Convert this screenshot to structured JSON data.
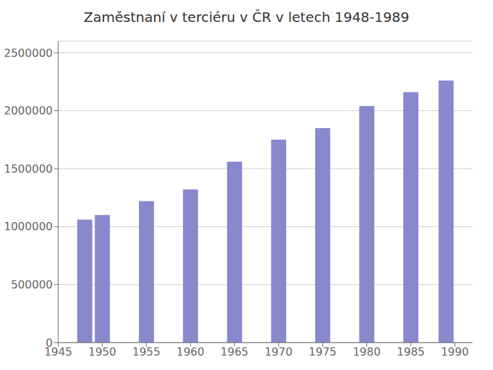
{
  "chart_data": {
    "type": "bar",
    "title": "Zaměstnaní v terciéru v ČR v letech 1948-1989",
    "x": [
      1948,
      1950,
      1955,
      1960,
      1965,
      1970,
      1975,
      1980,
      1985,
      1989
    ],
    "values": [
      1060000,
      1100000,
      1220000,
      1320000,
      1560000,
      1750000,
      1850000,
      2040000,
      2160000,
      2260000
    ],
    "color": "#8888cc",
    "xlim": [
      1945,
      1992
    ],
    "xticks": [
      1945,
      1950,
      1955,
      1960,
      1965,
      1970,
      1975,
      1980,
      1985,
      1990
    ],
    "ylim": [
      0,
      2600000
    ],
    "yticks": [
      0,
      500000,
      1000000,
      1500000,
      2000000,
      2500000
    ],
    "grid": "y"
  }
}
